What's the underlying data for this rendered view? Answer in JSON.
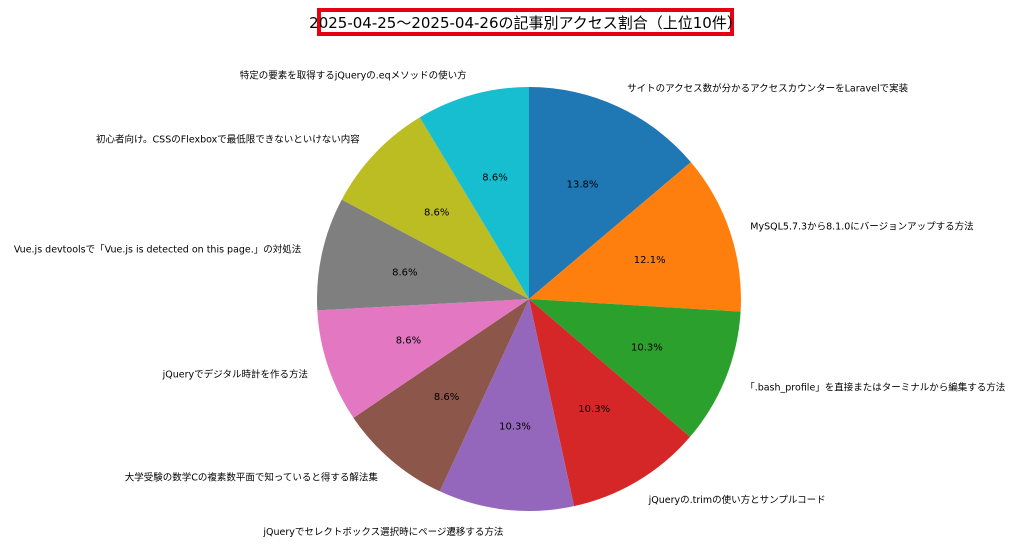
{
  "chart_data": {
    "type": "pie",
    "title": "2025-04-25〜2025-04-26の記事別アクセス割合（上位10件）",
    "start_angle": "top, clockwise",
    "slices": [
      {
        "label": "サイトのアクセス数が分かるアクセスカウンターをLaravelで実装",
        "value": 13.8,
        "pct_label": "13.8%",
        "color": "#1f77b4"
      },
      {
        "label": "MySQL5.7.3から8.1.0にバージョンアップする方法",
        "value": 12.1,
        "pct_label": "12.1%",
        "color": "#ff7f0e"
      },
      {
        "label": "「.bash_profile」を直接またはターミナルから編集する方法",
        "value": 10.3,
        "pct_label": "10.3%",
        "color": "#2ca02c"
      },
      {
        "label": "jQueryの.trimの使い方とサンプルコード",
        "value": 10.3,
        "pct_label": "10.3%",
        "color": "#d62728"
      },
      {
        "label": "jQueryでセレクトボックス選択時にページ遷移する方法",
        "value": 10.3,
        "pct_label": "10.3%",
        "color": "#9467bd"
      },
      {
        "label": "大学受験の数学Cの複素数平面で知っていると得する解法集",
        "value": 8.6,
        "pct_label": "8.6%",
        "color": "#8c564b"
      },
      {
        "label": "jQueryでデジタル時計を作る方法",
        "value": 8.6,
        "pct_label": "8.6%",
        "color": "#e377c2"
      },
      {
        "label": "Vue.js devtoolsで「Vue.js is detected on this page.」の対処法",
        "value": 8.6,
        "pct_label": "8.6%",
        "color": "#7f7f7f"
      },
      {
        "label": "初心者向け。CSSのFlexboxで最低限できないといけない内容",
        "value": 8.6,
        "pct_label": "8.6%",
        "color": "#bcbd22"
      },
      {
        "label": "特定の要素を取得するjQueryの.eqメソッドの使い方",
        "value": 8.6,
        "pct_label": "8.6%",
        "color": "#17becf"
      }
    ]
  }
}
